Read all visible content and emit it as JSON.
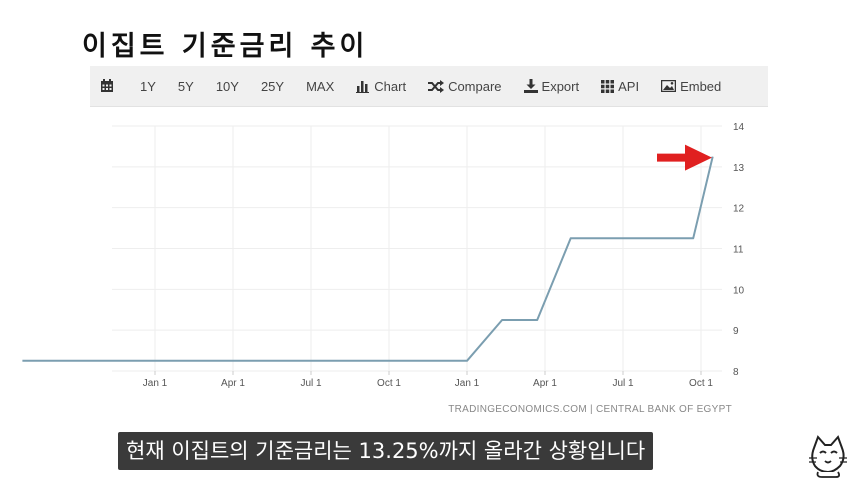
{
  "title": "이집트 기준금리 추이",
  "toolbar": {
    "items": [
      {
        "label": "",
        "icon": "calendar-icon"
      },
      {
        "label": "1Y"
      },
      {
        "label": "5Y"
      },
      {
        "label": "10Y"
      },
      {
        "label": "25Y"
      },
      {
        "label": "MAX"
      },
      {
        "label": "Chart",
        "icon": "bar-chart-icon"
      },
      {
        "label": "Compare",
        "icon": "shuffle-icon"
      },
      {
        "label": "Export",
        "icon": "download-icon"
      },
      {
        "label": "API",
        "icon": "grid-icon"
      },
      {
        "label": "Embed",
        "icon": "image-icon"
      }
    ]
  },
  "source": "TRADINGECONOMICS.COM | CENTRAL BANK OF EGYPT",
  "subtitle": "현재 이집트의 기준금리는 13.25%까지 올라간 상황입니다",
  "colors": {
    "line": "#7b9eb0",
    "arrow": "#e02020",
    "grid": "#eeeeee"
  },
  "chart_data": {
    "type": "line",
    "x_ticks": [
      "Jan 1",
      "Apr 1",
      "Jul 1",
      "Oct 1",
      "Jan 1",
      "Apr 1",
      "Jul 1",
      "Oct 1"
    ],
    "y_ticks": [
      8,
      9,
      10,
      11,
      12,
      13,
      14
    ],
    "ylim": [
      8,
      14
    ],
    "y_axis_side": "right",
    "grid": true,
    "series": [
      {
        "x": [
          -1.7,
          4.0,
          4.45,
          4.9,
          5.33,
          5.55,
          6.9,
          7.15
        ],
        "y": [
          8.25,
          8.25,
          9.25,
          9.25,
          11.25,
          11.25,
          11.25,
          13.25
        ]
      }
    ],
    "annotations": [
      {
        "type": "arrow",
        "points_to": 13.25
      }
    ]
  }
}
